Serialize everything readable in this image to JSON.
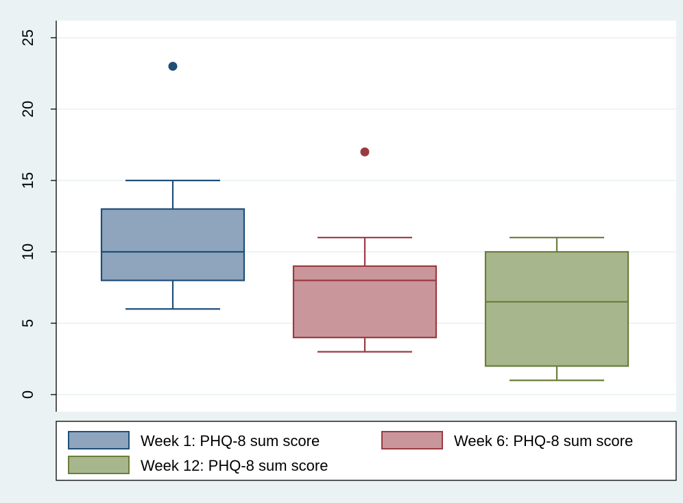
{
  "chart_data": {
    "type": "box",
    "title": "",
    "xlabel": "",
    "ylabel": "",
    "ylim": [
      -1.2,
      26.2
    ],
    "yticks": [
      0,
      5,
      10,
      15,
      20,
      25
    ],
    "grid": true,
    "legend_position": "bottom",
    "series": [
      {
        "name": "Week 1: PHQ-8 sum score",
        "whisker_low": 6,
        "q1": 8,
        "median": 10,
        "q3": 13,
        "whisker_high": 15,
        "outliers": [
          23
        ],
        "fill": "#8fa5bd",
        "stroke": "#1f4e79"
      },
      {
        "name": "Week 6: PHQ-8 sum score",
        "whisker_low": 3,
        "q1": 4,
        "median": 8,
        "q3": 9,
        "whisker_high": 11,
        "outliers": [
          17
        ],
        "fill": "#c9979b",
        "stroke": "#9a3a40"
      },
      {
        "name": "Week 12: PHQ-8 sum score",
        "whisker_low": 1,
        "q1": 2,
        "median": 6.5,
        "q3": 10,
        "whisker_high": 11,
        "outliers": [],
        "fill": "#a8b68e",
        "stroke": "#6a7d3a"
      }
    ]
  }
}
